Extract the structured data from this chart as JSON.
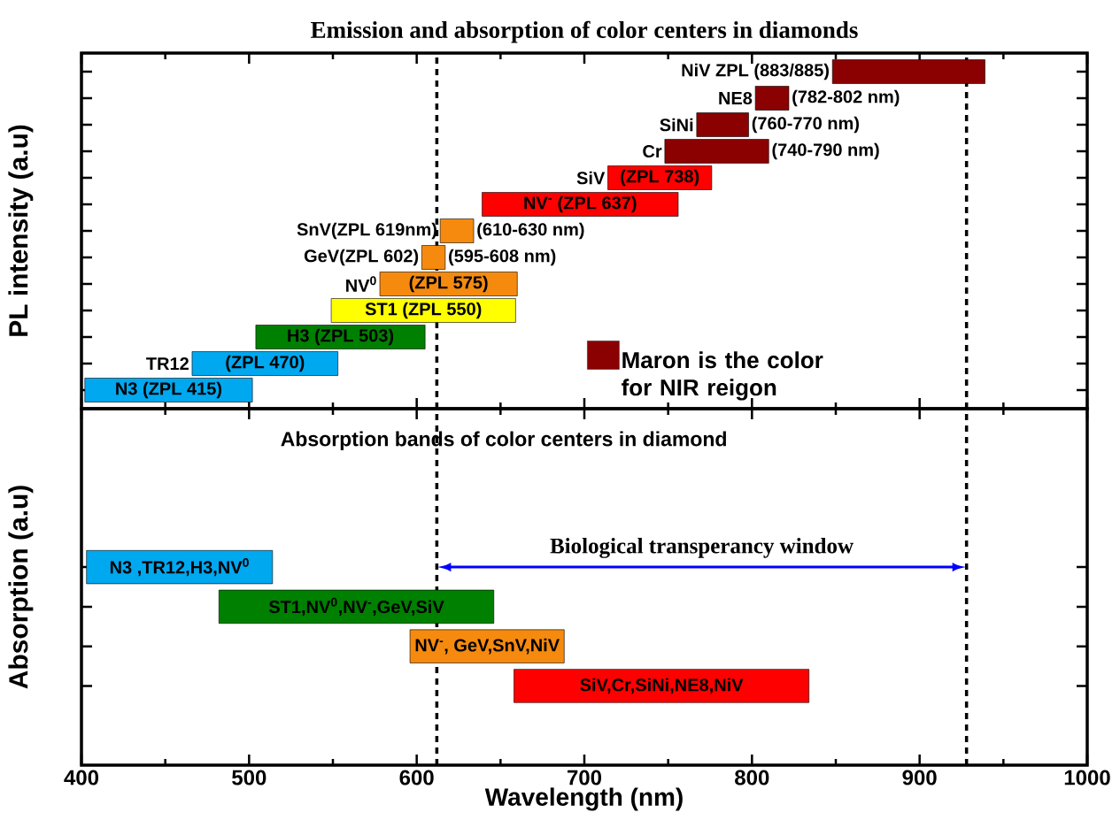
{
  "chart_data": [
    {
      "type": "bar",
      "orientation": "horizontal",
      "title": "Emission and absorption of color centers in diamonds",
      "ylabel": "PL intensity (a.u)",
      "categories": [
        "NiV ZPL (883/885)",
        "NE8",
        "SiNi",
        "Cr",
        "SiV",
        null,
        "SnV(ZPL 619nm)",
        "GeV(ZPL 602)",
        "NV$^{0}$",
        null,
        null,
        "TR12",
        null
      ],
      "series": [
        {
          "name": "Maron is the color for NIR reigon",
          "color": "#8b0000",
          "values": [
            91,
            20,
            31,
            62,
            null,
            null,
            null,
            null,
            null,
            null,
            null,
            null,
            null
          ],
          "base": [
            848,
            802,
            767,
            748,
            null,
            null,
            null,
            null,
            null,
            null,
            null,
            null,
            null
          ]
        },
        {
          "values": [
            null,
            null,
            null,
            null,
            62,
            117,
            20,
            14,
            82,
            110,
            101,
            87,
            100
          ],
          "base": [
            null,
            null,
            null,
            null,
            714,
            639,
            614,
            603,
            578,
            549,
            504,
            466,
            402
          ],
          "colors": [
            null,
            null,
            null,
            null,
            "#ff0000",
            "#ff0000",
            "#f58a0f",
            "#f58a0f",
            "#f58a0f",
            "#ffff00",
            "#008000",
            "#00a8f0",
            "#00a8f0"
          ],
          "value_labels": [
            null,
            null,
            null,
            null,
            "(ZPL 738)",
            "NV$^{-}$ (ZPL 637)",
            null,
            null,
            "(ZPL 575)",
            "ST1 (ZPL 550)",
            "H3 (ZPL 503)",
            "(ZPL 470)",
            "N3 (ZPL 415)"
          ]
        }
      ],
      "annotations": [
        {
          "text": "(782-802 nm)",
          "x": 822,
          "y": "NE8"
        },
        {
          "text": "(760-770 nm)",
          "x": 798,
          "y": "SiNi"
        },
        {
          "text": "(740-790 nm)",
          "x": 810,
          "y": "Cr"
        },
        {
          "text": "(610-630 nm)",
          "x": 634,
          "y": "SnV(ZPL 619nm)"
        },
        {
          "text": "(595-608 nm)",
          "x": 617,
          "y": "GeV(ZPL 602)"
        }
      ],
      "xlim": [
        400,
        1000
      ],
      "xticks": [
        400,
        500,
        600,
        700,
        800,
        900,
        1000
      ],
      "tick_labels": false,
      "legend": "bottom right",
      "ref_lines": [
        {
          "axis": "x",
          "value": 612,
          "color": "#000000",
          "line_style": "dotted"
        },
        {
          "axis": "x",
          "value": 928,
          "color": "#000000",
          "line_style": "dotted"
        }
      ]
    },
    {
      "type": "bar",
      "orientation": "horizontal",
      "xlabel": "Wavelength (nm)",
      "ylabel": "Absorption (a.u)",
      "categories": [
        null,
        null,
        null,
        null
      ],
      "base": [
        403,
        482,
        596,
        658
      ],
      "values": [
        111,
        164,
        92,
        176
      ],
      "colors": [
        "#00a8f0",
        "#008000",
        "#f58a0f",
        "#ff0000"
      ],
      "value_labels": [
        "N3 ,TR12,H3,NV$^{0}$",
        "ST1,NV$^{0}$,NV$^{-}$,GeV,SiV",
        "NV$^{-}$, GeV,SnV,NiV",
        "SiV,Cr,SiNi,NE8,NiV"
      ],
      "annotations": [
        "Absorption bands of color centers in diamond",
        "Biological transperancy window"
      ],
      "xlim": [
        400,
        1000
      ],
      "xticks": [
        400,
        500,
        600,
        700,
        800,
        900,
        1000
      ],
      "tick_labels": "x",
      "ref_lines": [
        {
          "axis": "x",
          "value": 612,
          "color": "#000000",
          "line_style": "dotted"
        },
        {
          "axis": "x",
          "value": 928,
          "color": "#000000",
          "line_style": "dotted"
        }
      ]
    }
  ]
}
